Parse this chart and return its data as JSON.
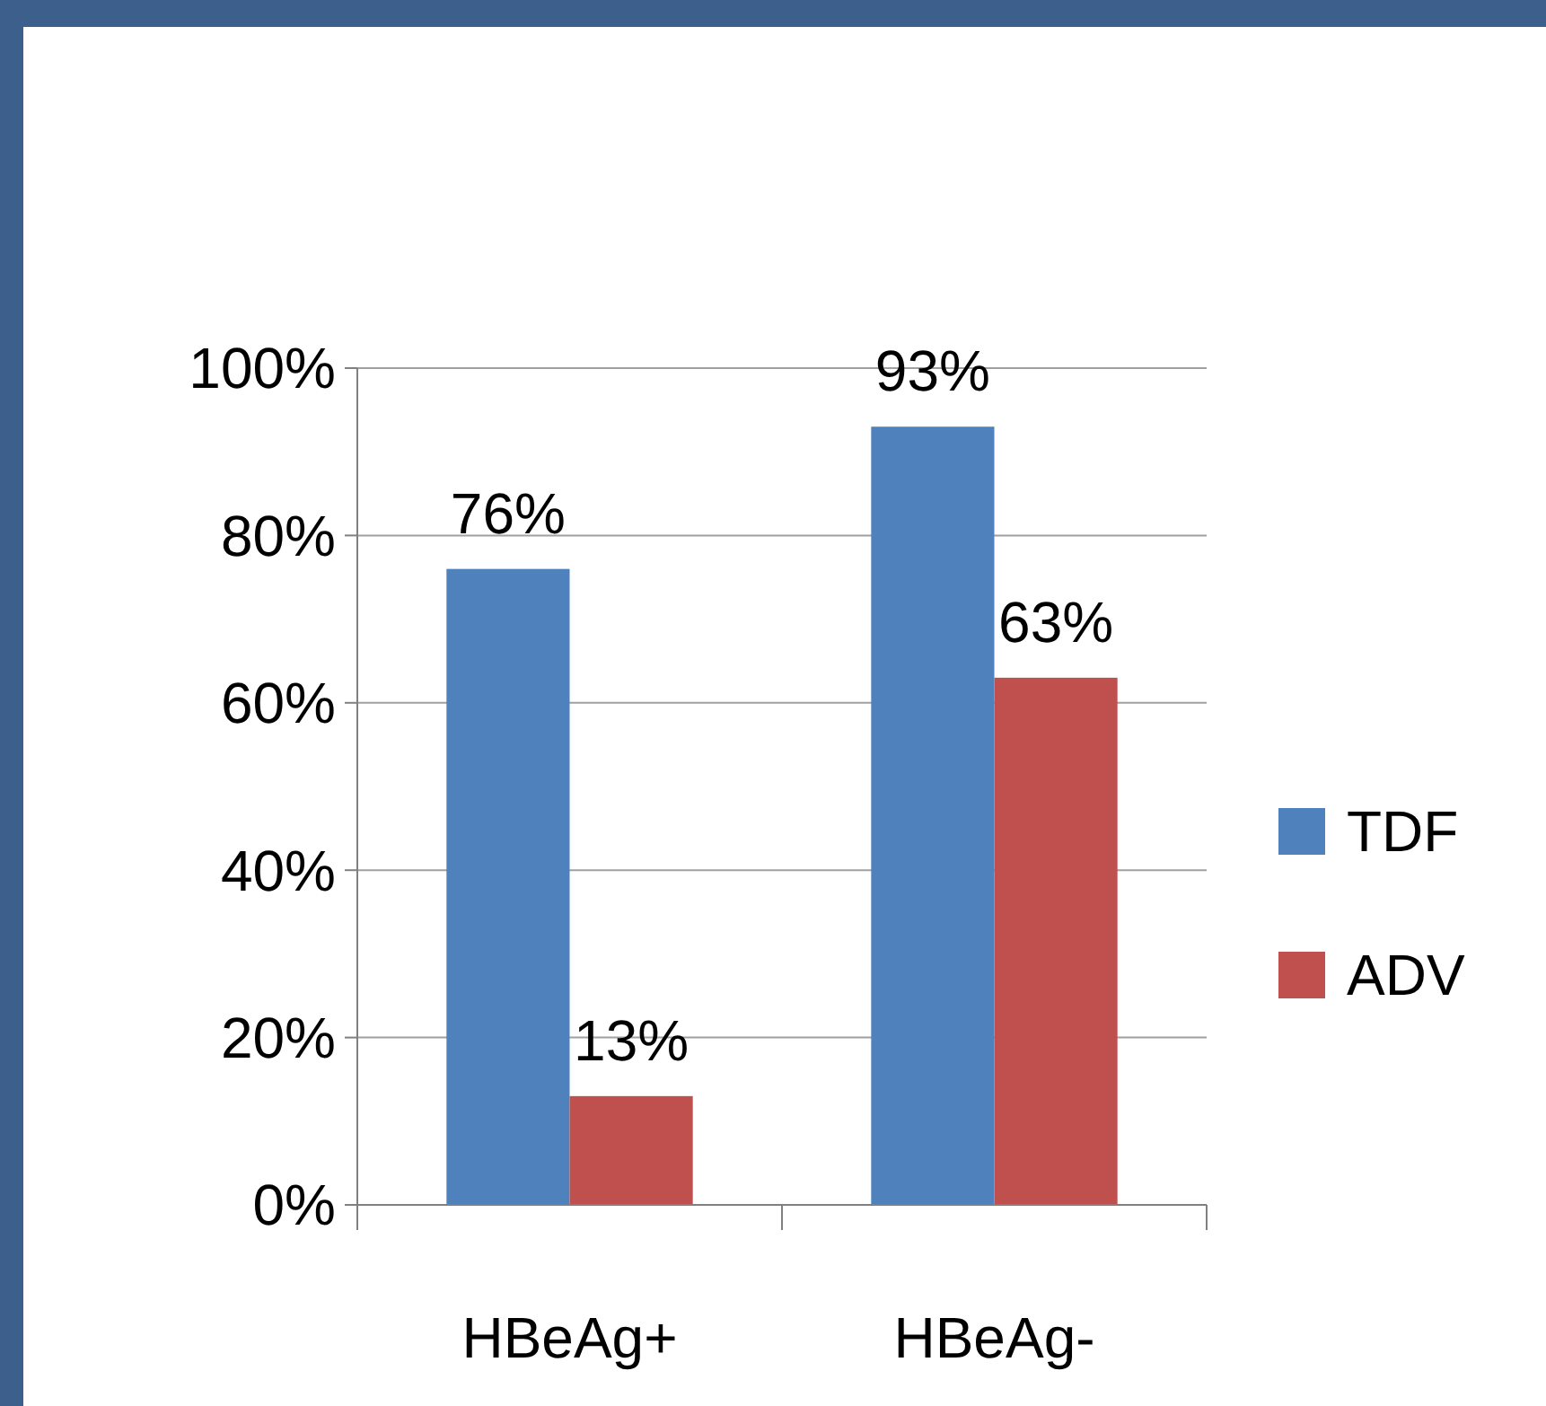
{
  "chart_data": {
    "type": "bar",
    "categories": [
      "HBeAg+",
      "HBeAg-"
    ],
    "series": [
      {
        "name": "TDF",
        "color": "#4f81bd",
        "values": [
          76,
          93
        ],
        "value_labels": [
          "76%",
          "93%"
        ]
      },
      {
        "name": "ADV",
        "color": "#c0504d",
        "values": [
          13,
          63
        ],
        "value_labels": [
          "13%",
          "63%"
        ]
      }
    ],
    "ylim": [
      0,
      100
    ],
    "yticks": [
      {
        "value": 0,
        "label": "0%"
      },
      {
        "value": 20,
        "label": "20%"
      },
      {
        "value": 40,
        "label": "40%"
      },
      {
        "value": 60,
        "label": "60%"
      },
      {
        "value": 80,
        "label": "80%"
      },
      {
        "value": 100,
        "label": "100%"
      }
    ],
    "grid": "y",
    "legend": "right"
  }
}
